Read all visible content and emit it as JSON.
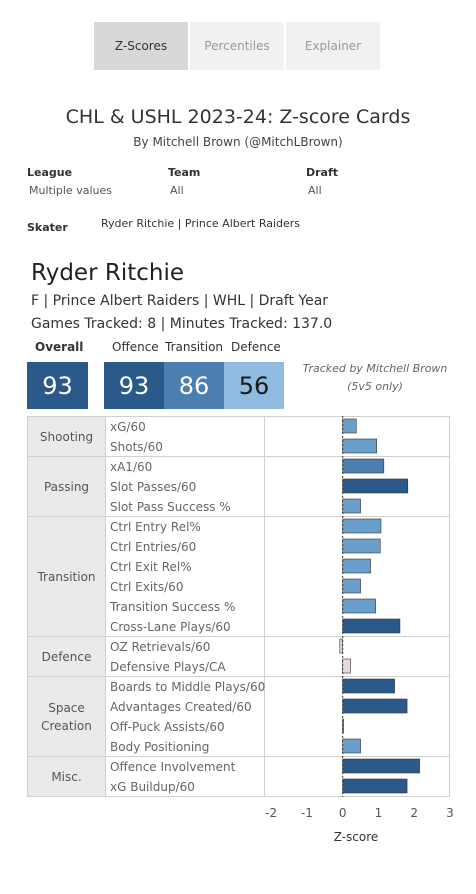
{
  "tabs": [
    {
      "label": "Z-Scores",
      "active": true
    },
    {
      "label": "Percentiles",
      "active": false
    },
    {
      "label": "Explainer",
      "active": false
    }
  ],
  "title": "CHL & USHL 2023-24: Z-score Cards",
  "subtitle": "By Mitchell Brown (@MitchLBrown)",
  "filters": {
    "league": {
      "label": "League",
      "value": "Multiple values"
    },
    "team": {
      "label": "Team",
      "value": "All"
    },
    "draft": {
      "label": "Draft",
      "value": "All"
    }
  },
  "skater": {
    "label": "Skater",
    "value": "Ryder Ritchie | Prince Albert Raiders"
  },
  "player": {
    "name": "Ryder Ritchie",
    "line1": "F | Prince Albert Raiders | WHL | Draft Year",
    "line2": "Games Tracked: 8 | Minutes Tracked: 137.0"
  },
  "scores": {
    "overall": {
      "label": "Overall",
      "value": "93",
      "color": "#2b5a8a"
    },
    "offence": {
      "label": "Offence",
      "value": "93",
      "color": "#2b5a8a"
    },
    "transition": {
      "label": "Transition",
      "value": "86",
      "color": "#4a7fb0"
    },
    "defence": {
      "label": "Defence",
      "value": "56",
      "color": "#8fbce0"
    }
  },
  "tracked": {
    "line1": "Tracked by Mitchell Brown",
    "line2": "(5v5 only)"
  },
  "chart_data": {
    "type": "bar",
    "orientation": "horizontal",
    "xlabel": "Z-score",
    "xlim": [
      -2.2,
      3.0
    ],
    "xticks": [
      "-2",
      "-1",
      "0",
      "1",
      "2",
      "3"
    ],
    "groups": [
      {
        "name": "Shooting",
        "metrics": [
          {
            "label": "xG/60",
            "value": 0.38,
            "color": "#6a9fcc"
          },
          {
            "label": "Shots/60",
            "value": 0.95,
            "color": "#6a9fcc"
          }
        ]
      },
      {
        "name": "Passing",
        "metrics": [
          {
            "label": "xA1/60",
            "value": 1.15,
            "color": "#4a7fb0"
          },
          {
            "label": "Slot Passes/60",
            "value": 1.82,
            "color": "#2b5a8a"
          },
          {
            "label": "Slot Pass Success %",
            "value": 0.5,
            "color": "#6a9fcc"
          }
        ]
      },
      {
        "name": "Transition",
        "metrics": [
          {
            "label": "Ctrl Entry Rel%",
            "value": 1.07,
            "color": "#6a9fcc"
          },
          {
            "label": "Ctrl Entries/60",
            "value": 1.05,
            "color": "#6a9fcc"
          },
          {
            "label": "Ctrl Exit Rel%",
            "value": 0.78,
            "color": "#6a9fcc"
          },
          {
            "label": "Ctrl Exits/60",
            "value": 0.5,
            "color": "#6a9fcc"
          },
          {
            "label": "Transition Success %",
            "value": 0.92,
            "color": "#6a9fcc"
          },
          {
            "label": "Cross-Lane Plays/60",
            "value": 1.6,
            "color": "#2b5a8a"
          }
        ]
      },
      {
        "name": "Defence",
        "metrics": [
          {
            "label": "OZ Retrievals/60",
            "value": -0.08,
            "color": "#e6dada"
          },
          {
            "label": "Defensive Plays/CA",
            "value": 0.22,
            "color": "#e6dada"
          }
        ]
      },
      {
        "name": "Space\nCreation",
        "metrics": [
          {
            "label": "Boards to Middle Plays/60",
            "value": 1.45,
            "color": "#2b5a8a"
          },
          {
            "label": "Advantages Created/60",
            "value": 1.8,
            "color": "#2b5a8a"
          },
          {
            "label": "Off-Puck Assists/60",
            "value": 0.0,
            "color": "#2b5a8a"
          },
          {
            "label": "Body Positioning",
            "value": 0.5,
            "color": "#6a9fcc"
          }
        ]
      },
      {
        "name": "Misc.",
        "metrics": [
          {
            "label": "Offence Involvement",
            "value": 2.15,
            "color": "#2b5a8a"
          },
          {
            "label": "xG Buildup/60",
            "value": 1.8,
            "color": "#2b5a8a"
          }
        ]
      }
    ]
  }
}
